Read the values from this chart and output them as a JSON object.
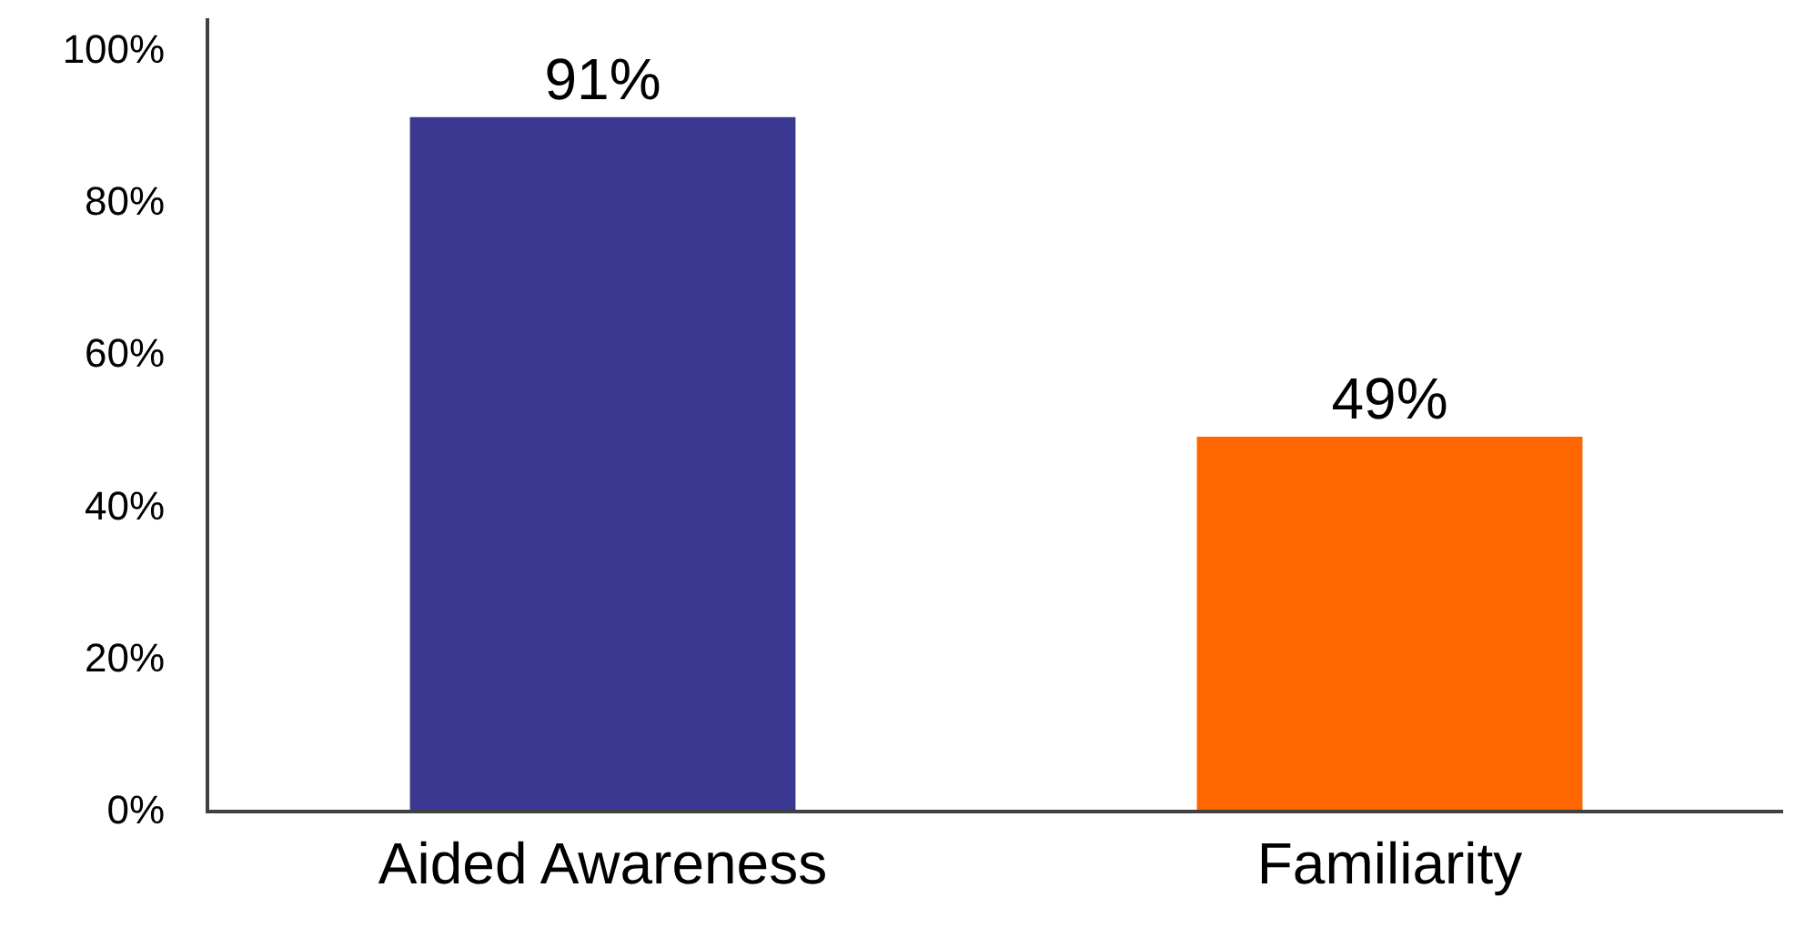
{
  "chart_data": {
    "type": "bar",
    "categories": [
      "Aided Awareness",
      "Familiarity"
    ],
    "values": [
      91,
      49
    ],
    "colors": [
      "#3b3891",
      "#ff6600"
    ],
    "value_labels": [
      "91%",
      "49%"
    ],
    "ylim": [
      0,
      104
    ],
    "yticks": [
      {
        "value": 0,
        "label": "0%"
      },
      {
        "value": 20,
        "label": "20%"
      },
      {
        "value": 40,
        "label": "40%"
      },
      {
        "value": 60,
        "label": "60%"
      },
      {
        "value": 80,
        "label": "80%"
      },
      {
        "value": 100,
        "label": "100%"
      }
    ],
    "grid": false,
    "legend": false
  }
}
